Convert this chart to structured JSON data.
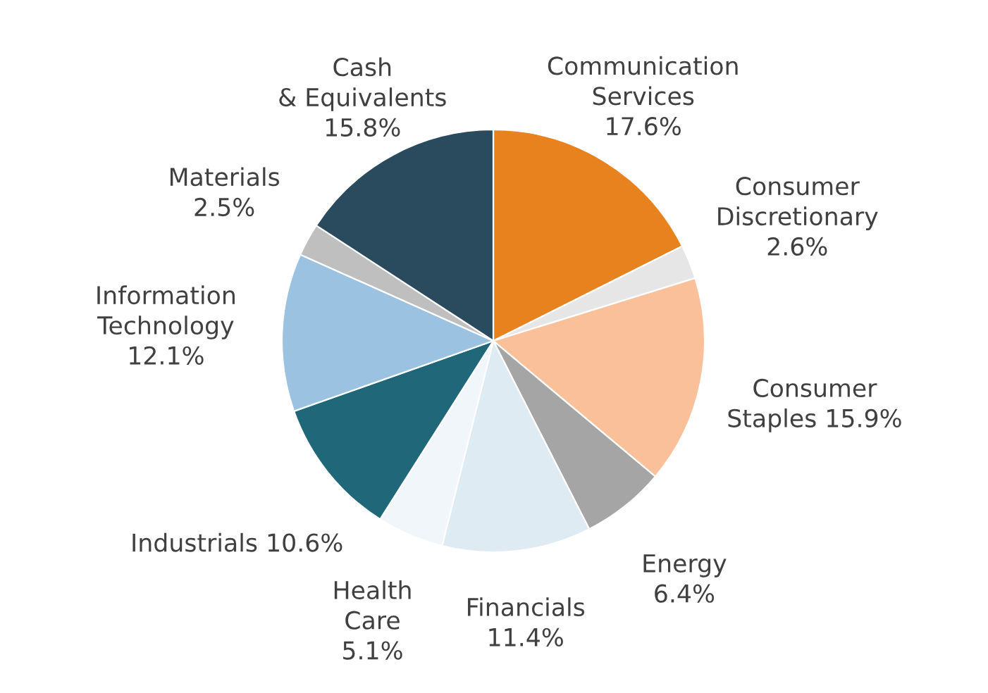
{
  "chart_data": {
    "type": "pie",
    "categories": [
      "Communication Services",
      "Consumer Discretionary",
      "Consumer Staples",
      "Energy",
      "Financials",
      "Health Care",
      "Industrials",
      "Information Technology",
      "Materials",
      "Cash & Equivalents"
    ],
    "values": [
      17.6,
      2.6,
      15.9,
      6.4,
      11.4,
      5.1,
      10.6,
      12.1,
      2.5,
      15.8
    ],
    "value_labels": [
      "17.6%",
      "2.6%",
      "15.9%",
      "6.4%",
      "11.4%",
      "5.1%",
      "10.6%",
      "12.1%",
      "2.5%",
      "15.8%"
    ],
    "colors": [
      "#e8821e",
      "#e6e6e6",
      "#f9c09a",
      "#a5a5a5",
      "#deebf3",
      "#f0f6fa",
      "#1f6779",
      "#9bc3e1",
      "#bfbfbf",
      "#2a4a5e"
    ]
  }
}
